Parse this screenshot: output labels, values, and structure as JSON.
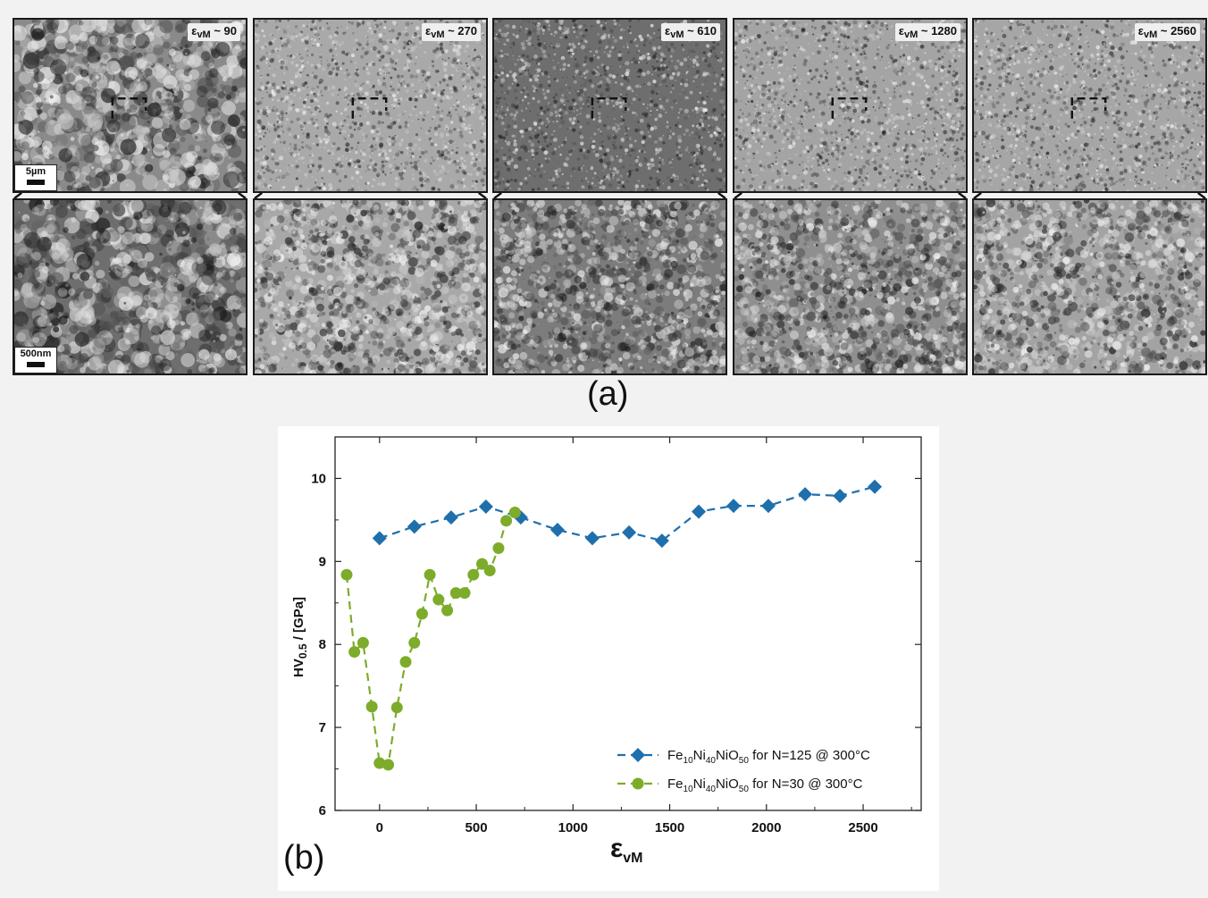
{
  "panel_a": {
    "label": "(a)",
    "columns": [
      {
        "strain_label": "ε",
        "strain_sub": "vM",
        "strain_value": " ~ 90",
        "top_tone": "#8a8a8a",
        "top_texture": "coarse",
        "bottom_tone": "#6e6e6e",
        "bottom_texture": "coarse"
      },
      {
        "strain_label": "ε",
        "strain_sub": "vM",
        "strain_value": " ~ 270",
        "top_tone": "#a9a9a9",
        "top_texture": "fine",
        "bottom_tone": "#a8a8a8",
        "bottom_texture": "medium"
      },
      {
        "strain_label": "ε",
        "strain_sub": "vM",
        "strain_value": " ~ 610",
        "top_tone": "#6e6e6e",
        "top_texture": "fine",
        "bottom_tone": "#7c7c7c",
        "bottom_texture": "medium"
      },
      {
        "strain_label": "ε",
        "strain_sub": "vM",
        "strain_value": " ~ 1280",
        "top_tone": "#a4a4a4",
        "top_texture": "fine",
        "bottom_tone": "#8f8f8f",
        "bottom_texture": "medium"
      },
      {
        "strain_label": "ε",
        "strain_sub": "vM",
        "strain_value": " ~ 2560",
        "top_tone": "#a6a6a6",
        "top_texture": "fine",
        "bottom_tone": "#a3a3a3",
        "bottom_texture": "medium"
      }
    ],
    "scale_top": "5µm",
    "scale_bottom": "500nm"
  },
  "panel_b": {
    "label": "(b)"
  },
  "chart_data": {
    "type": "line",
    "xlabel_main": "ε",
    "xlabel_sub": "vM",
    "ylabel_main": "HV",
    "ylabel_sub": "0.5",
    "ylabel_rest": " / [GPa]",
    "xlim": [
      -230,
      2800
    ],
    "ylim": [
      6,
      10.5
    ],
    "xticks": [
      0,
      500,
      1000,
      1500,
      2000,
      2500
    ],
    "yticks": [
      6,
      7,
      8,
      9,
      10
    ],
    "grid": false,
    "legend_position": "bottom-right",
    "series": [
      {
        "legend_parts": [
          "Fe",
          "10",
          "Ni",
          "40",
          "NiO",
          "50",
          " for N=125 @ 300°C"
        ],
        "color": "#1f6fad",
        "marker": "diamond",
        "x": [
          0,
          180,
          370,
          550,
          730,
          920,
          1100,
          1290,
          1460,
          1650,
          1830,
          2010,
          2200,
          2380,
          2560
        ],
        "y": [
          9.28,
          9.42,
          9.53,
          9.66,
          9.53,
          9.38,
          9.28,
          9.35,
          9.25,
          9.6,
          9.67,
          9.67,
          9.81,
          9.79,
          9.9
        ]
      },
      {
        "legend_parts": [
          "Fe",
          "10",
          "Ni",
          "40",
          "NiO",
          "50",
          " for  N=30 @ 300°C"
        ],
        "color": "#7cac2a",
        "marker": "circle",
        "x": [
          -170,
          -130,
          -85,
          -40,
          0,
          45,
          90,
          135,
          180,
          220,
          260,
          305,
          350,
          395,
          440,
          485,
          530,
          570,
          615,
          655,
          700
        ],
        "y": [
          8.84,
          7.91,
          8.02,
          7.25,
          6.57,
          6.55,
          7.24,
          7.79,
          8.02,
          8.37,
          8.84,
          8.54,
          8.41,
          8.62,
          8.62,
          8.84,
          8.97,
          8.89,
          9.16,
          9.49,
          9.59
        ]
      }
    ]
  }
}
